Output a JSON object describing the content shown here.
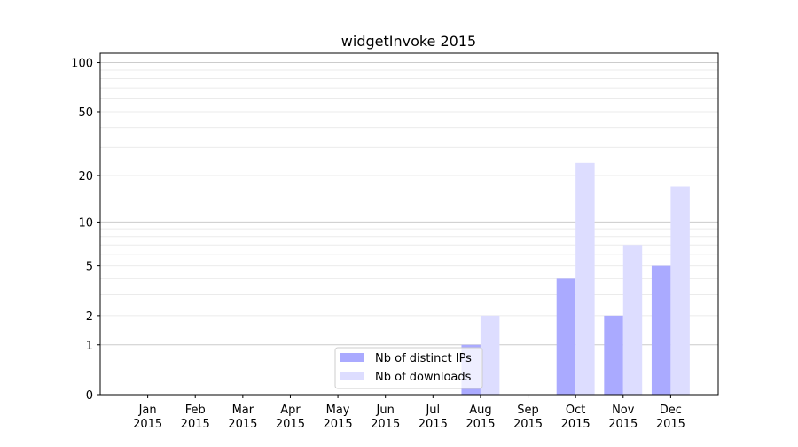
{
  "chart_data": {
    "type": "bar",
    "title": "widgetInvoke 2015",
    "xlabel": "",
    "ylabel": "",
    "yscale": "log(1+y)",
    "ylim": [
      0,
      114
    ],
    "yticks": [
      0,
      1,
      2,
      5,
      10,
      20,
      50,
      100
    ],
    "grid": true,
    "legend_position": "lower-center",
    "categories": [
      "Jan\n2015",
      "Feb\n2015",
      "Mar\n2015",
      "Apr\n2015",
      "May\n2015",
      "Jun\n2015",
      "Jul\n2015",
      "Aug\n2015",
      "Sep\n2015",
      "Oct\n2015",
      "Nov\n2015",
      "Dec\n2015"
    ],
    "series": [
      {
        "name": "Nb of distinct IPs",
        "color": "#aaaaff",
        "values": [
          0,
          0,
          0,
          0,
          0,
          0,
          0,
          1,
          0,
          4,
          2,
          5
        ]
      },
      {
        "name": "Nb of downloads",
        "color": "#ddddff",
        "values": [
          0,
          0,
          0,
          0,
          0,
          0,
          0,
          2,
          0,
          24,
          7,
          17
        ]
      }
    ]
  }
}
